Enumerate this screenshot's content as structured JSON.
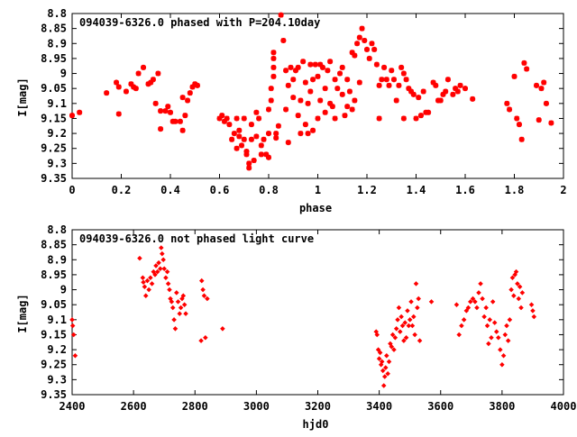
{
  "chart_data": [
    {
      "type": "scatter",
      "title": "094039-6326.0 phased with P=204.10day",
      "xlabel": "phase",
      "ylabel": "I[mag]",
      "xlim": [
        0,
        2
      ],
      "ylim": [
        9.35,
        8.8
      ],
      "y_inverted": true,
      "grid": false,
      "legend": "none",
      "marker_color": "#ff0000",
      "xticks": [
        0,
        0.2,
        0.4,
        0.6,
        0.8,
        1,
        1.2,
        1.4,
        1.6,
        1.8,
        2
      ],
      "xtick_labels": [
        "0",
        "0.2",
        "0.4",
        "0.6",
        "0.8",
        "1",
        "1.2",
        "1.4",
        "1.6",
        "1.8",
        "2"
      ],
      "yticks": [
        8.8,
        8.85,
        8.9,
        8.95,
        9,
        9.05,
        9.1,
        9.15,
        9.2,
        9.25,
        9.3,
        9.35
      ],
      "ytick_labels": [
        "8.8",
        "8.85",
        "8.9",
        "8.95",
        "9",
        "9.05",
        "9.1",
        "9.15",
        "9.2",
        "9.25",
        "9.3",
        "9.35"
      ],
      "points": [
        [
          0.0,
          9.14
        ],
        [
          0.03,
          9.13
        ],
        [
          0.14,
          9.065
        ],
        [
          0.18,
          9.03
        ],
        [
          0.19,
          9.045
        ],
        [
          0.19,
          9.135
        ],
        [
          0.22,
          9.06
        ],
        [
          0.24,
          9.035
        ],
        [
          0.25,
          9.045
        ],
        [
          0.26,
          9.05
        ],
        [
          0.27,
          9.0
        ],
        [
          0.29,
          8.98
        ],
        [
          0.31,
          9.035
        ],
        [
          0.32,
          9.03
        ],
        [
          0.33,
          9.02
        ],
        [
          0.34,
          9.1
        ],
        [
          0.35,
          9.0
        ],
        [
          0.36,
          9.125
        ],
        [
          0.36,
          9.185
        ],
        [
          0.38,
          9.125
        ],
        [
          0.39,
          9.11
        ],
        [
          0.4,
          9.13
        ],
        [
          0.41,
          9.16
        ],
        [
          0.42,
          9.16
        ],
        [
          0.44,
          9.16
        ],
        [
          0.45,
          9.19
        ],
        [
          0.45,
          9.08
        ],
        [
          0.46,
          9.14
        ],
        [
          0.47,
          9.09
        ],
        [
          0.48,
          9.065
        ],
        [
          0.49,
          9.045
        ],
        [
          0.5,
          9.035
        ],
        [
          0.51,
          9.04
        ],
        [
          0.6,
          9.15
        ],
        [
          0.61,
          9.14
        ],
        [
          0.62,
          9.16
        ],
        [
          0.63,
          9.15
        ],
        [
          0.64,
          9.17
        ],
        [
          0.65,
          9.22
        ],
        [
          0.66,
          9.2
        ],
        [
          0.67,
          9.15
        ],
        [
          0.67,
          9.25
        ],
        [
          0.68,
          9.19
        ],
        [
          0.68,
          9.21
        ],
        [
          0.69,
          9.24
        ],
        [
          0.7,
          9.15
        ],
        [
          0.7,
          9.22
        ],
        [
          0.71,
          9.27
        ],
        [
          0.71,
          9.26
        ],
        [
          0.72,
          9.3
        ],
        [
          0.72,
          9.315
        ],
        [
          0.73,
          9.22
        ],
        [
          0.73,
          9.17
        ],
        [
          0.74,
          9.29
        ],
        [
          0.75,
          9.21
        ],
        [
          0.75,
          9.13
        ],
        [
          0.76,
          9.15
        ],
        [
          0.77,
          9.27
        ],
        [
          0.77,
          9.24
        ],
        [
          0.78,
          9.22
        ],
        [
          0.79,
          9.27
        ],
        [
          0.8,
          9.28
        ],
        [
          0.8,
          9.2
        ],
        [
          0.8,
          9.12
        ],
        [
          0.81,
          9.09
        ],
        [
          0.81,
          9.05
        ],
        [
          0.82,
          9.01
        ],
        [
          0.82,
          8.98
        ],
        [
          0.82,
          8.95
        ],
        [
          0.82,
          8.93
        ],
        [
          0.83,
          9.2
        ],
        [
          0.83,
          9.215
        ],
        [
          0.84,
          9.175
        ],
        [
          0.85,
          8.805
        ],
        [
          0.86,
          8.89
        ],
        [
          0.87,
          8.99
        ],
        [
          0.87,
          9.12
        ],
        [
          0.88,
          9.04
        ],
        [
          0.88,
          9.23
        ],
        [
          0.89,
          8.98
        ],
        [
          0.9,
          9.02
        ],
        [
          0.9,
          9.08
        ],
        [
          0.91,
          8.99
        ],
        [
          0.92,
          8.98
        ],
        [
          0.92,
          9.14
        ],
        [
          0.93,
          9.2
        ],
        [
          0.93,
          9.09
        ],
        [
          0.94,
          8.96
        ],
        [
          0.95,
          9.03
        ],
        [
          0.95,
          9.17
        ],
        [
          0.96,
          9.1
        ],
        [
          0.96,
          9.2
        ],
        [
          0.97,
          8.97
        ],
        [
          0.97,
          9.06
        ],
        [
          0.98,
          9.19
        ],
        [
          0.98,
          9.02
        ],
        [
          0.99,
          8.97
        ],
        [
          1.0,
          9.01
        ],
        [
          1.0,
          9.15
        ],
        [
          1.01,
          8.97
        ],
        [
          1.01,
          9.09
        ],
        [
          1.02,
          8.98
        ],
        [
          1.03,
          9.05
        ],
        [
          1.03,
          9.13
        ],
        [
          1.04,
          8.99
        ],
        [
          1.05,
          9.1
        ],
        [
          1.05,
          8.96
        ],
        [
          1.06,
          9.11
        ],
        [
          1.07,
          9.02
        ],
        [
          1.07,
          9.15
        ],
        [
          1.08,
          9.05
        ],
        [
          1.09,
          9.0
        ],
        [
          1.1,
          8.98
        ],
        [
          1.1,
          9.07
        ],
        [
          1.11,
          9.14
        ],
        [
          1.12,
          9.02
        ],
        [
          1.12,
          9.11
        ],
        [
          1.13,
          9.06
        ],
        [
          1.14,
          9.12
        ],
        [
          1.14,
          8.93
        ],
        [
          1.15,
          8.94
        ],
        [
          1.15,
          9.09
        ],
        [
          1.16,
          8.9
        ],
        [
          1.17,
          9.03
        ],
        [
          1.17,
          8.88
        ],
        [
          1.18,
          8.85
        ],
        [
          1.19,
          8.89
        ],
        [
          1.2,
          8.92
        ],
        [
          1.21,
          8.95
        ],
        [
          1.22,
          8.9
        ],
        [
          1.23,
          8.92
        ],
        [
          1.24,
          8.97
        ],
        [
          1.25,
          9.15
        ],
        [
          1.25,
          9.04
        ],
        [
          1.26,
          9.02
        ],
        [
          1.27,
          8.98
        ],
        [
          1.28,
          9.02
        ],
        [
          1.29,
          9.04
        ],
        [
          1.3,
          8.99
        ],
        [
          1.31,
          9.02
        ],
        [
          1.32,
          9.09
        ],
        [
          1.33,
          9.04
        ],
        [
          1.34,
          8.98
        ],
        [
          1.35,
          9.0
        ],
        [
          1.35,
          9.15
        ],
        [
          1.36,
          9.02
        ],
        [
          1.37,
          9.05
        ],
        [
          1.38,
          9.06
        ],
        [
          1.39,
          9.07
        ],
        [
          1.4,
          9.15
        ],
        [
          1.41,
          9.08
        ],
        [
          1.42,
          9.14
        ],
        [
          1.43,
          9.06
        ],
        [
          1.44,
          9.13
        ],
        [
          1.45,
          9.13
        ],
        [
          1.47,
          9.03
        ],
        [
          1.48,
          9.04
        ],
        [
          1.49,
          9.09
        ],
        [
          1.5,
          9.09
        ],
        [
          1.51,
          9.07
        ],
        [
          1.52,
          9.06
        ],
        [
          1.53,
          9.02
        ],
        [
          1.55,
          9.07
        ],
        [
          1.56,
          9.05
        ],
        [
          1.57,
          9.06
        ],
        [
          1.58,
          9.04
        ],
        [
          1.6,
          9.05
        ],
        [
          1.63,
          9.085
        ],
        [
          1.77,
          9.1
        ],
        [
          1.78,
          9.12
        ],
        [
          1.8,
          9.01
        ],
        [
          1.81,
          9.15
        ],
        [
          1.82,
          9.17
        ],
        [
          1.83,
          9.22
        ],
        [
          1.84,
          8.965
        ],
        [
          1.85,
          8.985
        ],
        [
          1.89,
          9.04
        ],
        [
          1.9,
          9.155
        ],
        [
          1.91,
          9.05
        ],
        [
          1.92,
          9.03
        ],
        [
          1.93,
          9.1
        ],
        [
          1.95,
          9.165
        ]
      ]
    },
    {
      "type": "scatter",
      "title": "094039-6326.0 not phased light curve",
      "xlabel": "hjd0",
      "ylabel": "I[mag]",
      "xlim": [
        2400,
        4000
      ],
      "ylim": [
        9.35,
        8.8
      ],
      "y_inverted": true,
      "grid": false,
      "legend": "none",
      "marker_color": "#ff0000",
      "xticks": [
        2400,
        2600,
        2800,
        3000,
        3200,
        3400,
        3600,
        3800,
        4000
      ],
      "xtick_labels": [
        "2400",
        "2600",
        "2800",
        "3000",
        "3200",
        "3400",
        "3600",
        "3800",
        "4000"
      ],
      "yticks": [
        8.8,
        8.85,
        8.9,
        8.95,
        9,
        9.05,
        9.1,
        9.15,
        9.2,
        9.25,
        9.3,
        9.35
      ],
      "ytick_labels": [
        "8.8",
        "8.85",
        "8.9",
        "8.95",
        "9",
        "9.05",
        "9.1",
        "9.15",
        "9.2",
        "9.25",
        "9.3",
        "9.35"
      ],
      "points": [
        [
          2400,
          9.1
        ],
        [
          2402,
          9.12
        ],
        [
          2405,
          9.15
        ],
        [
          2410,
          9.22
        ],
        [
          2620,
          8.895
        ],
        [
          2630,
          8.96
        ],
        [
          2632,
          8.975
        ],
        [
          2636,
          8.99
        ],
        [
          2640,
          9.02
        ],
        [
          2645,
          8.97
        ],
        [
          2650,
          9.0
        ],
        [
          2655,
          8.96
        ],
        [
          2660,
          8.98
        ],
        [
          2665,
          8.94
        ],
        [
          2670,
          8.95
        ],
        [
          2673,
          8.92
        ],
        [
          2678,
          8.94
        ],
        [
          2682,
          8.91
        ],
        [
          2687,
          8.93
        ],
        [
          2690,
          8.86
        ],
        [
          2693,
          8.88
        ],
        [
          2697,
          8.9
        ],
        [
          2700,
          8.93
        ],
        [
          2705,
          8.96
        ],
        [
          2710,
          8.94
        ],
        [
          2713,
          8.98
        ],
        [
          2717,
          9.0
        ],
        [
          2720,
          9.03
        ],
        [
          2724,
          9.04
        ],
        [
          2728,
          9.06
        ],
        [
          2732,
          9.1
        ],
        [
          2736,
          9.13
        ],
        [
          2740,
          9.01
        ],
        [
          2745,
          9.04
        ],
        [
          2750,
          9.08
        ],
        [
          2754,
          9.06
        ],
        [
          2758,
          9.03
        ],
        [
          2762,
          9.02
        ],
        [
          2766,
          9.05
        ],
        [
          2770,
          9.08
        ],
        [
          2820,
          9.17
        ],
        [
          2822,
          8.97
        ],
        [
          2826,
          9.0
        ],
        [
          2830,
          9.02
        ],
        [
          2834,
          9.16
        ],
        [
          2840,
          9.03
        ],
        [
          2890,
          9.13
        ],
        [
          3390,
          9.14
        ],
        [
          3393,
          9.15
        ],
        [
          3397,
          9.2
        ],
        [
          3400,
          9.23
        ],
        [
          3403,
          9.21
        ],
        [
          3406,
          9.25
        ],
        [
          3409,
          9.24
        ],
        [
          3412,
          9.27
        ],
        [
          3415,
          9.32
        ],
        [
          3418,
          9.29
        ],
        [
          3421,
          9.26
        ],
        [
          3424,
          9.22
        ],
        [
          3428,
          9.28
        ],
        [
          3432,
          9.24
        ],
        [
          3436,
          9.18
        ],
        [
          3440,
          9.19
        ],
        [
          3444,
          9.15
        ],
        [
          3448,
          9.2
        ],
        [
          3452,
          9.16
        ],
        [
          3456,
          9.13
        ],
        [
          3460,
          9.1
        ],
        [
          3464,
          9.06
        ],
        [
          3468,
          9.14
        ],
        [
          3472,
          9.09
        ],
        [
          3476,
          9.12
        ],
        [
          3480,
          9.17
        ],
        [
          3484,
          9.11
        ],
        [
          3488,
          9.16
        ],
        [
          3492,
          9.07
        ],
        [
          3496,
          9.12
        ],
        [
          3500,
          9.1
        ],
        [
          3504,
          9.04
        ],
        [
          3508,
          9.12
        ],
        [
          3512,
          9.09
        ],
        [
          3516,
          9.15
        ],
        [
          3520,
          8.98
        ],
        [
          3524,
          9.06
        ],
        [
          3528,
          9.03
        ],
        [
          3532,
          9.17
        ],
        [
          3570,
          9.04
        ],
        [
          3652,
          9.05
        ],
        [
          3660,
          9.15
        ],
        [
          3668,
          9.12
        ],
        [
          3676,
          9.1
        ],
        [
          3684,
          9.07
        ],
        [
          3690,
          9.06
        ],
        [
          3697,
          9.04
        ],
        [
          3705,
          9.03
        ],
        [
          3712,
          9.04
        ],
        [
          3718,
          9.06
        ],
        [
          3724,
          9.01
        ],
        [
          3730,
          8.98
        ],
        [
          3736,
          9.03
        ],
        [
          3742,
          9.09
        ],
        [
          3748,
          9.06
        ],
        [
          3752,
          9.12
        ],
        [
          3756,
          9.18
        ],
        [
          3760,
          9.1
        ],
        [
          3765,
          9.16
        ],
        [
          3770,
          9.04
        ],
        [
          3776,
          9.11
        ],
        [
          3782,
          9.14
        ],
        [
          3788,
          9.16
        ],
        [
          3794,
          9.2
        ],
        [
          3800,
          9.25
        ],
        [
          3805,
          9.22
        ],
        [
          3810,
          9.15
        ],
        [
          3815,
          9.12
        ],
        [
          3820,
          9.17
        ],
        [
          3825,
          9.1
        ],
        [
          3830,
          9.0
        ],
        [
          3834,
          8.96
        ],
        [
          3838,
          9.02
        ],
        [
          3842,
          8.95
        ],
        [
          3846,
          8.94
        ],
        [
          3850,
          8.98
        ],
        [
          3854,
          9.03
        ],
        [
          3858,
          8.99
        ],
        [
          3862,
          9.06
        ],
        [
          3866,
          9.01
        ],
        [
          3896,
          9.05
        ],
        [
          3900,
          9.07
        ],
        [
          3904,
          9.09
        ]
      ]
    }
  ]
}
